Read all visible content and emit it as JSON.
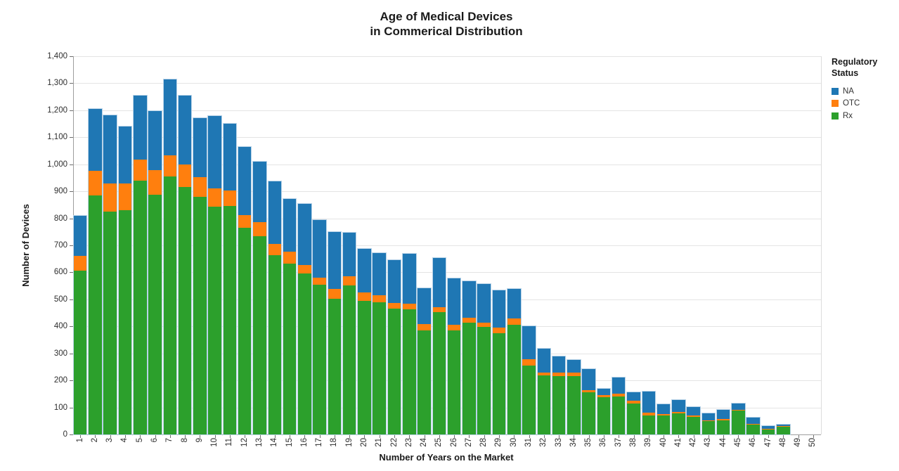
{
  "title": {
    "line1": "Age of Medical Devices",
    "line2": "in Commerical Distribution"
  },
  "y_axis": {
    "label": "Number of Devices",
    "min": 0,
    "max": 1400,
    "tick_step": 100,
    "tick_labels": [
      "0",
      "100",
      "200",
      "300",
      "400",
      "500",
      "600",
      "700",
      "800",
      "900",
      "1,000",
      "1,100",
      "1,200",
      "1,300",
      "1,400"
    ]
  },
  "x_axis": {
    "label": "Number of Years on the Market"
  },
  "legend": {
    "title_line1": "Regulatory",
    "title_line2": "Status",
    "items": [
      {
        "label": "NA",
        "color": "#1f77b4"
      },
      {
        "label": "OTC",
        "color": "#ff7f0e"
      },
      {
        "label": "Rx",
        "color": "#2ca02c"
      }
    ]
  },
  "colors": {
    "na_blue": "#1f77b4",
    "otc_orange": "#ff7f0e",
    "rx_green": "#2ca02c",
    "gridline": "#e4e4e4",
    "axis": "#9e9e9e"
  },
  "chart_data": {
    "type": "bar",
    "stacked": true,
    "title": "Age of Medical Devices in Commerical Distribution",
    "xlabel": "Number of Years on the Market",
    "ylabel": "Number of Devices",
    "ylim": [
      0,
      1400
    ],
    "grid": true,
    "legend_position": "right",
    "legend_title": "Regulatory Status",
    "stack_order_bottom_to_top": [
      "Rx",
      "OTC",
      "NA"
    ],
    "categories": [
      1,
      2,
      3,
      4,
      5,
      6,
      7,
      8,
      9,
      10,
      11,
      12,
      13,
      14,
      15,
      16,
      17,
      18,
      19,
      20,
      21,
      22,
      23,
      24,
      25,
      26,
      27,
      28,
      29,
      30,
      31,
      32,
      33,
      34,
      35,
      36,
      37,
      38,
      39,
      40,
      41,
      42,
      43,
      44,
      45,
      46,
      47,
      48,
      49,
      50
    ],
    "series": [
      {
        "name": "NA",
        "color": "#1f77b4",
        "values": [
          148,
          230,
          252,
          212,
          235,
          218,
          283,
          253,
          218,
          269,
          248,
          252,
          223,
          233,
          196,
          226,
          214,
          212,
          162,
          162,
          157,
          159,
          183,
          132,
          182,
          173,
          135,
          142,
          138,
          110,
          121,
          89,
          60,
          47,
          78,
          21,
          60,
          30,
          80,
          37,
          46,
          32,
          24,
          32,
          24,
          22,
          11,
          6,
          0,
          0
        ]
      },
      {
        "name": "OTC",
        "color": "#ff7f0e",
        "values": [
          57,
          90,
          103,
          99,
          78,
          90,
          77,
          85,
          72,
          68,
          56,
          48,
          54,
          42,
          43,
          31,
          27,
          35,
          34,
          31,
          26,
          19,
          22,
          23,
          20,
          21,
          17,
          15,
          21,
          24,
          23,
          10,
          14,
          12,
          8,
          8,
          10,
          10,
          10,
          6,
          4,
          6,
          4,
          5,
          3,
          4,
          4,
          2,
          0,
          0
        ]
      },
      {
        "name": "Rx",
        "color": "#2ca02c",
        "values": [
          605,
          885,
          826,
          830,
          940,
          888,
          955,
          915,
          880,
          843,
          846,
          765,
          733,
          663,
          633,
          596,
          553,
          503,
          552,
          494,
          488,
          467,
          463,
          386,
          452,
          384,
          414,
          399,
          374,
          405,
          256,
          219,
          216,
          216,
          157,
          139,
          140,
          115,
          70,
          69,
          78,
          64,
          49,
          53,
          88,
          36,
          17,
          29,
          0,
          0
        ]
      }
    ]
  }
}
